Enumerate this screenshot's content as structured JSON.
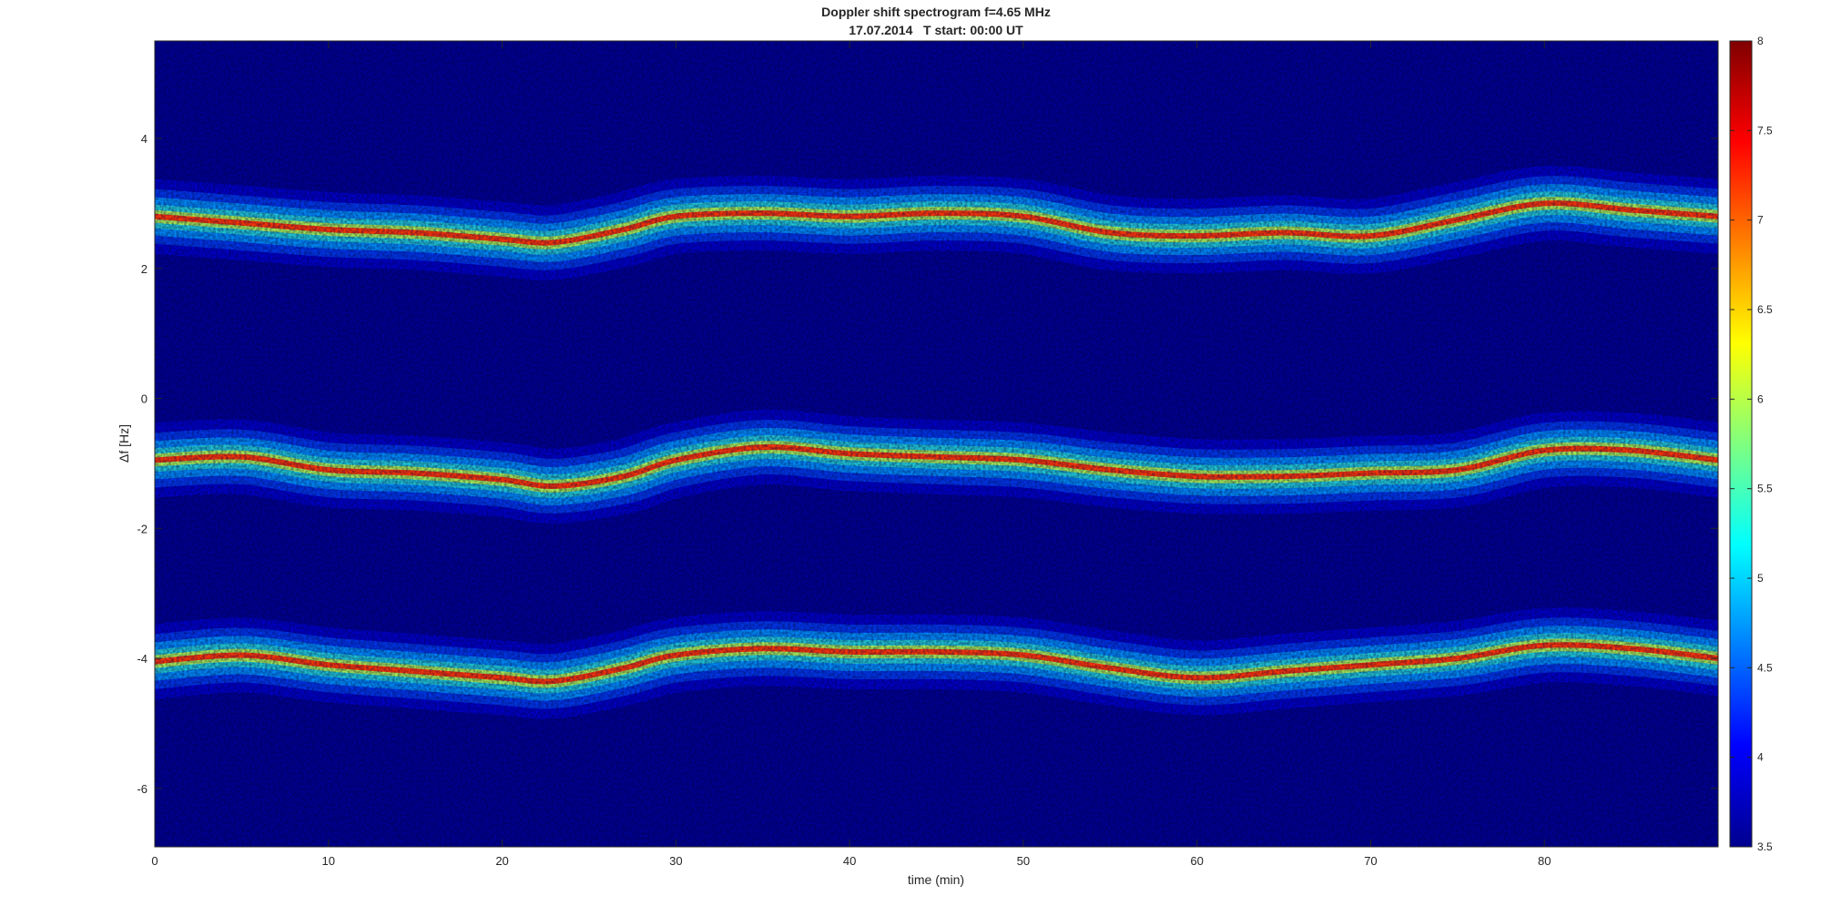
{
  "chart_data": {
    "type": "heatmap",
    "title": "Doppler shift spectrogram f=4.65 MHz",
    "subtitle": "17.07.2014   T start: 00:00 UT",
    "xlabel": "time (min)",
    "ylabel": "Δf [Hz]",
    "xlim": [
      0,
      90
    ],
    "ylim": [
      -6.9,
      5.5
    ],
    "x_ticks": [
      "0",
      "10",
      "20",
      "30",
      "40",
      "50",
      "60",
      "70",
      "80"
    ],
    "y_ticks": [
      "-6",
      "-4",
      "-2",
      "0",
      "2",
      "4"
    ],
    "colorbar": {
      "colormap": "jet",
      "limits": [
        3.5,
        8
      ],
      "ticks": [
        "3.5",
        "4",
        "4.5",
        "5",
        "5.5",
        "6",
        "6.5",
        "7",
        "7.5",
        "8"
      ]
    },
    "grid": false,
    "series": [
      {
        "time_min": [
          0,
          5,
          10,
          15,
          20,
          23,
          27,
          30,
          35,
          40,
          45,
          50,
          55,
          60,
          65,
          70,
          75,
          80,
          85,
          90
        ],
        "doppler_hz": [
          2.8,
          2.7,
          2.6,
          2.55,
          2.45,
          2.4,
          2.6,
          2.8,
          2.85,
          2.8,
          2.85,
          2.8,
          2.55,
          2.5,
          2.55,
          2.5,
          2.75,
          3.0,
          2.9,
          2.8
        ]
      },
      {
        "time_min": [
          0,
          5,
          10,
          15,
          20,
          23,
          27,
          30,
          35,
          40,
          45,
          50,
          55,
          60,
          65,
          70,
          75,
          80,
          85,
          90
        ],
        "doppler_hz": [
          -0.95,
          -0.9,
          -1.1,
          -1.15,
          -1.25,
          -1.35,
          -1.2,
          -0.95,
          -0.75,
          -0.85,
          -0.9,
          -0.95,
          -1.1,
          -1.2,
          -1.2,
          -1.15,
          -1.1,
          -0.8,
          -0.8,
          -0.95
        ]
      },
      {
        "time_min": [
          0,
          5,
          10,
          15,
          20,
          23,
          27,
          30,
          35,
          40,
          45,
          50,
          55,
          60,
          65,
          70,
          75,
          80,
          85,
          90
        ],
        "doppler_hz": [
          -4.05,
          -3.95,
          -4.1,
          -4.2,
          -4.3,
          -4.35,
          -4.15,
          -3.95,
          -3.85,
          -3.9,
          -3.9,
          -3.95,
          -4.15,
          -4.3,
          -4.2,
          -4.1,
          -4.0,
          -3.8,
          -3.85,
          -4.0
        ]
      }
    ]
  }
}
